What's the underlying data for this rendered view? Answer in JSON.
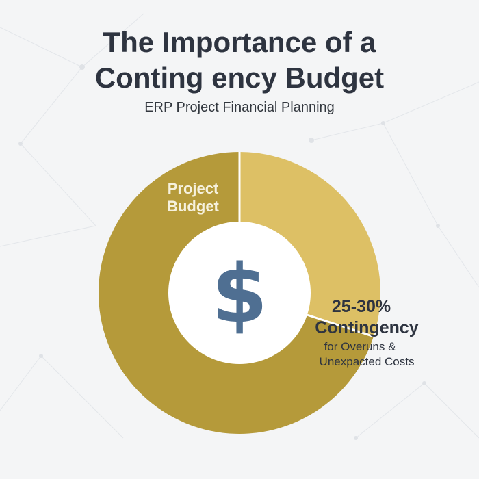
{
  "header": {
    "title_line1": "The Importance of a",
    "title_line2": "Conting ency Budget",
    "subtitle": "ERP Project Financial Planning"
  },
  "center_icon": {
    "name": "dollar-icon",
    "glyph": "$",
    "color": "#4f6f92"
  },
  "colors": {
    "project_budget": "#b59a3a",
    "contingency": "#ddc065",
    "background": "#f4f5f6",
    "text_dark": "#2e3440",
    "label_light": "#f6f1dd"
  },
  "chart_data": {
    "type": "pie",
    "title": "The Importance of a Contingency Budget",
    "subtitle": "ERP Project Financial Planning",
    "style": "donut",
    "slices": [
      {
        "label": "Project Budget",
        "label_lines": [
          "Project",
          "Budget"
        ],
        "value": 70,
        "color": "#b59a3a"
      },
      {
        "label": "25-30% Contingency for Overuns & Unexpacted Costs",
        "percent_text": "25-30%",
        "name_text": "Contingency",
        "desc_lines": [
          "for Overuns &",
          "Unexpacted Costs"
        ],
        "value": 30,
        "color": "#ddc065"
      }
    ]
  }
}
